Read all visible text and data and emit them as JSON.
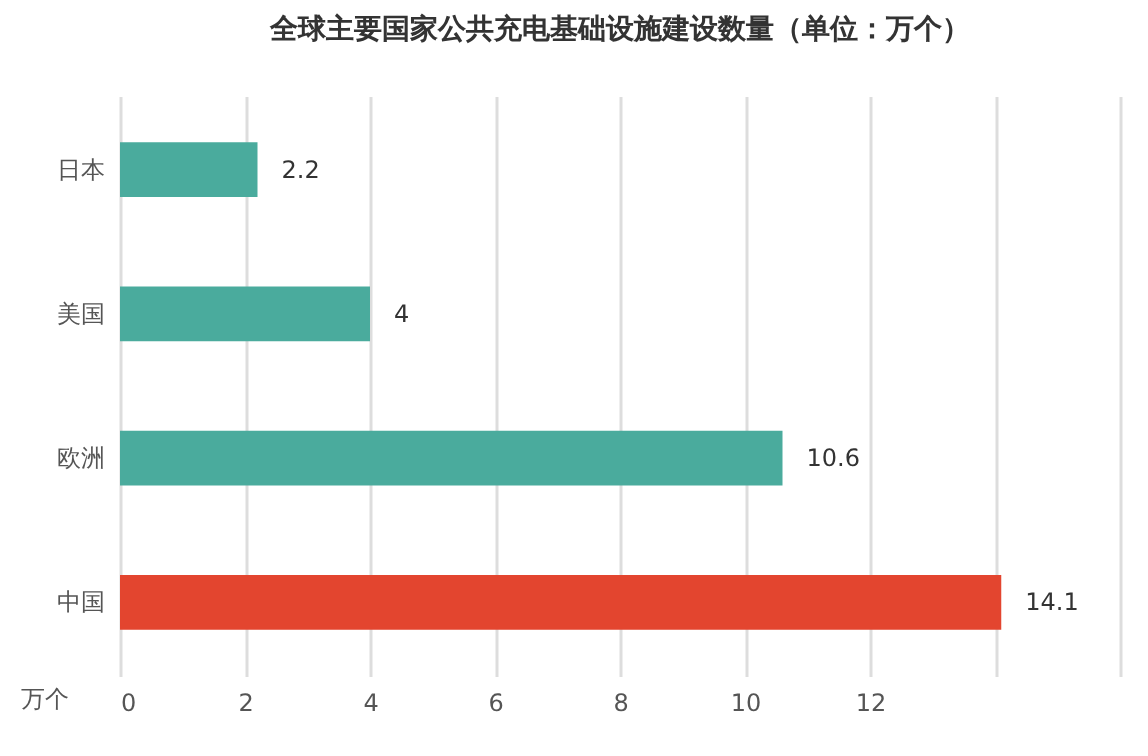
{
  "chart_data": {
    "type": "bar",
    "orientation": "horizontal",
    "title": "全球主要国家公共充电基础设施建设数量（单位：万个）",
    "xlabel": "万个",
    "categories": [
      "日本",
      "美国",
      "欧洲",
      "中国"
    ],
    "values": [
      2.2,
      4,
      10.6,
      14.1
    ],
    "colors": [
      "#4aab9d",
      "#4aab9d",
      "#4aab9d",
      "#e3452f"
    ],
    "xlim": [
      0,
      16
    ],
    "xticks": [
      0,
      2,
      4,
      6,
      8,
      10,
      12,
      {
        "value": 14,
        "label": null
      },
      {
        "value": 16,
        "label": null
      }
    ],
    "grid": "x",
    "data_labels": true
  }
}
